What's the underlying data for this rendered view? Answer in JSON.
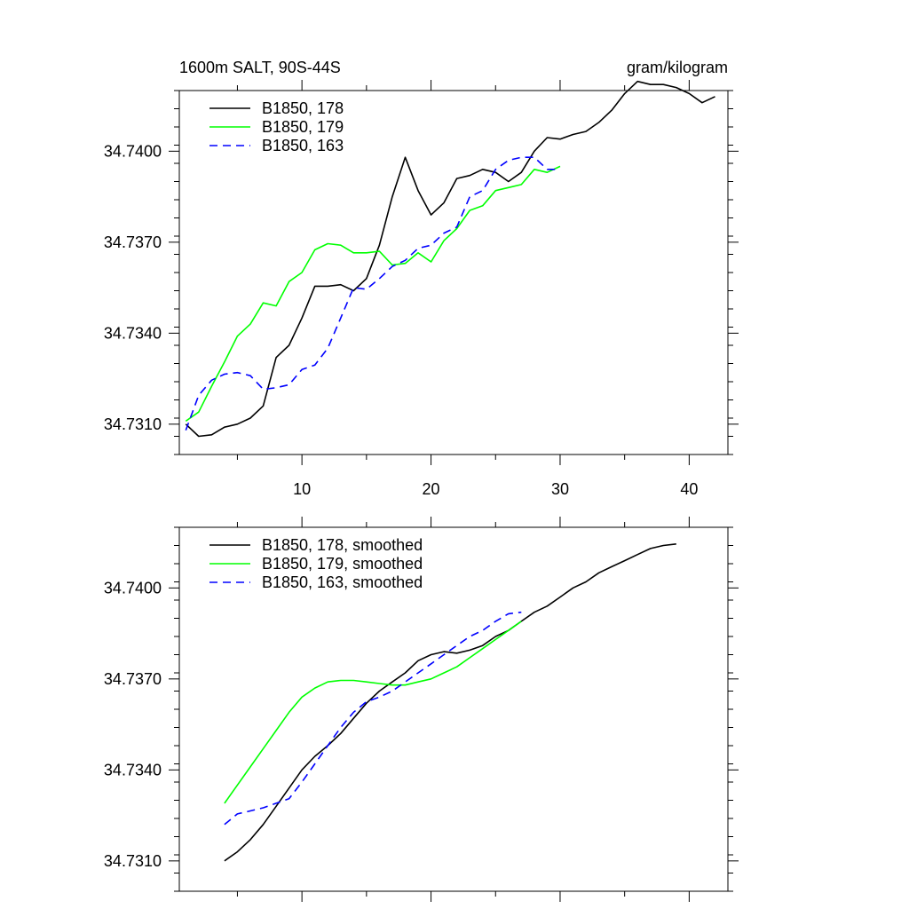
{
  "chart_data": [
    {
      "type": "line",
      "title": "1600m SALT, 90S-44S",
      "units": "gram/kilogram",
      "xlabel": "",
      "ylabel": "",
      "xlim": [
        0.5,
        43
      ],
      "ylim": [
        34.73,
        34.742
      ],
      "xticks_major": [
        10,
        20,
        30,
        40
      ],
      "xticks_minor": [
        0,
        5,
        15,
        25,
        35
      ],
      "xtick_labels": [
        "10",
        "20",
        "30",
        "40"
      ],
      "yticks_major": [
        34.731,
        34.734,
        34.737,
        34.74
      ],
      "ytick_labels": [
        "34.7310",
        "34.7340",
        "34.7370",
        "34.7400"
      ],
      "legend_position": "top-left",
      "series": [
        {
          "name": "B1850, 178",
          "color": "#000000",
          "dash": "solid",
          "x": [
            1,
            2,
            3,
            4,
            5,
            6,
            7,
            8,
            9,
            10,
            11,
            12,
            13,
            14,
            15,
            16,
            17,
            18,
            19,
            20,
            21,
            22,
            23,
            24,
            25,
            26,
            27,
            28,
            29,
            30,
            31,
            32,
            33,
            34,
            35,
            36,
            37,
            38,
            39,
            40,
            41,
            42
          ],
          "y": [
            34.731,
            34.7306,
            34.73065,
            34.7309,
            34.731,
            34.7312,
            34.7316,
            34.7332,
            34.7336,
            34.7345,
            34.73555,
            34.73555,
            34.7356,
            34.7354,
            34.7358,
            34.7369,
            34.7385,
            34.7398,
            34.7387,
            34.7379,
            34.7383,
            34.7391,
            34.7392,
            34.7394,
            34.7393,
            34.739,
            34.7393,
            34.74,
            34.74045,
            34.7404,
            34.74055,
            34.74065,
            34.74095,
            34.74135,
            34.7419,
            34.7423,
            34.7422,
            34.7422,
            34.7421,
            34.7419,
            34.7416,
            34.7418
          ]
        },
        {
          "name": "B1850, 179",
          "color": "#00ff00",
          "dash": "solid",
          "x": [
            1,
            2,
            3,
            4,
            5,
            6,
            7,
            8,
            9,
            10,
            11,
            12,
            13,
            14,
            15,
            16,
            17,
            18,
            19,
            20,
            21,
            22,
            23,
            24,
            25,
            26,
            27,
            28,
            29,
            30
          ],
          "y": [
            34.7311,
            34.7314,
            34.73225,
            34.73305,
            34.7339,
            34.7343,
            34.735,
            34.7349,
            34.7357,
            34.736,
            34.73675,
            34.73695,
            34.7369,
            34.73665,
            34.73665,
            34.7367,
            34.73625,
            34.7363,
            34.73665,
            34.73635,
            34.73705,
            34.73745,
            34.73805,
            34.7382,
            34.7387,
            34.7388,
            34.7389,
            34.7394,
            34.7393,
            34.7395
          ]
        },
        {
          "name": "B1850, 163",
          "color": "#0000ff",
          "dash": "dashed",
          "x": [
            1,
            2,
            3,
            4,
            5,
            6,
            7,
            8,
            9,
            10,
            11,
            12,
            13,
            14,
            15,
            16,
            17,
            18,
            19,
            20,
            21,
            22,
            23,
            24,
            25,
            26,
            27,
            28,
            29,
            30
          ],
          "y": [
            34.7308,
            34.73195,
            34.73245,
            34.73265,
            34.7327,
            34.7326,
            34.73215,
            34.7322,
            34.7323,
            34.7328,
            34.73295,
            34.7335,
            34.7345,
            34.7355,
            34.73545,
            34.7358,
            34.7362,
            34.7364,
            34.7368,
            34.7369,
            34.7373,
            34.7375,
            34.7385,
            34.7387,
            34.7394,
            34.7397,
            34.7398,
            34.7398,
            34.7394,
            34.7394
          ]
        }
      ]
    },
    {
      "type": "line",
      "title": "",
      "units": "",
      "xlabel": "",
      "ylabel": "",
      "xlim": [
        0.5,
        43
      ],
      "ylim": [
        34.73,
        34.742
      ],
      "xticks_major": [
        10,
        20,
        30,
        40
      ],
      "xticks_minor": [
        0,
        5,
        15,
        25,
        35
      ],
      "xtick_labels": [],
      "yticks_major": [
        34.731,
        34.734,
        34.737,
        34.74
      ],
      "ytick_labels": [
        "34.7310",
        "34.7340",
        "34.7370",
        "34.7400"
      ],
      "legend_position": "top-left",
      "series": [
        {
          "name": "B1850, 178, smoothed",
          "color": "#000000",
          "dash": "solid",
          "x": [
            4,
            5,
            6,
            7,
            8,
            9,
            10,
            11,
            12,
            13,
            14,
            15,
            16,
            17,
            18,
            19,
            20,
            21,
            22,
            23,
            24,
            25,
            26,
            27,
            28,
            29,
            30,
            31,
            32,
            33,
            34,
            35,
            36,
            37,
            38,
            39
          ],
          "y": [
            34.731,
            34.7313,
            34.7317,
            34.7322,
            34.7328,
            34.7334,
            34.734,
            34.73445,
            34.7348,
            34.7352,
            34.7357,
            34.7362,
            34.7366,
            34.7369,
            34.7372,
            34.7376,
            34.7378,
            34.7379,
            34.73785,
            34.73795,
            34.7381,
            34.7384,
            34.7386,
            34.7389,
            34.7392,
            34.7394,
            34.7397,
            34.74,
            34.7402,
            34.7405,
            34.7407,
            34.7409,
            34.7411,
            34.7413,
            34.7414,
            34.74145
          ]
        },
        {
          "name": "B1850, 179, smoothed",
          "color": "#00ff00",
          "dash": "solid",
          "x": [
            4,
            5,
            6,
            7,
            8,
            9,
            10,
            11,
            12,
            13,
            14,
            15,
            16,
            17,
            18,
            19,
            20,
            21,
            22,
            23,
            24,
            25,
            26,
            27
          ],
          "y": [
            34.7329,
            34.7335,
            34.7341,
            34.7347,
            34.7353,
            34.7359,
            34.7364,
            34.7367,
            34.7369,
            34.73695,
            34.73695,
            34.7369,
            34.73685,
            34.7368,
            34.7368,
            34.7369,
            34.737,
            34.7372,
            34.7374,
            34.7377,
            34.738,
            34.7383,
            34.7386,
            34.7389
          ]
        },
        {
          "name": "B1850, 163, smoothed",
          "color": "#0000ff",
          "dash": "dashed",
          "x": [
            4,
            5,
            6,
            7,
            8,
            9,
            10,
            11,
            12,
            13,
            14,
            15,
            16,
            17,
            18,
            19,
            20,
            21,
            22,
            23,
            24,
            25,
            26,
            27
          ],
          "y": [
            34.7322,
            34.73255,
            34.73265,
            34.73275,
            34.7329,
            34.73305,
            34.7336,
            34.7342,
            34.7348,
            34.7354,
            34.7359,
            34.73625,
            34.7364,
            34.7366,
            34.7369,
            34.7372,
            34.7375,
            34.7378,
            34.7381,
            34.7384,
            34.7386,
            34.7389,
            34.73915,
            34.7392
          ]
        }
      ]
    }
  ]
}
